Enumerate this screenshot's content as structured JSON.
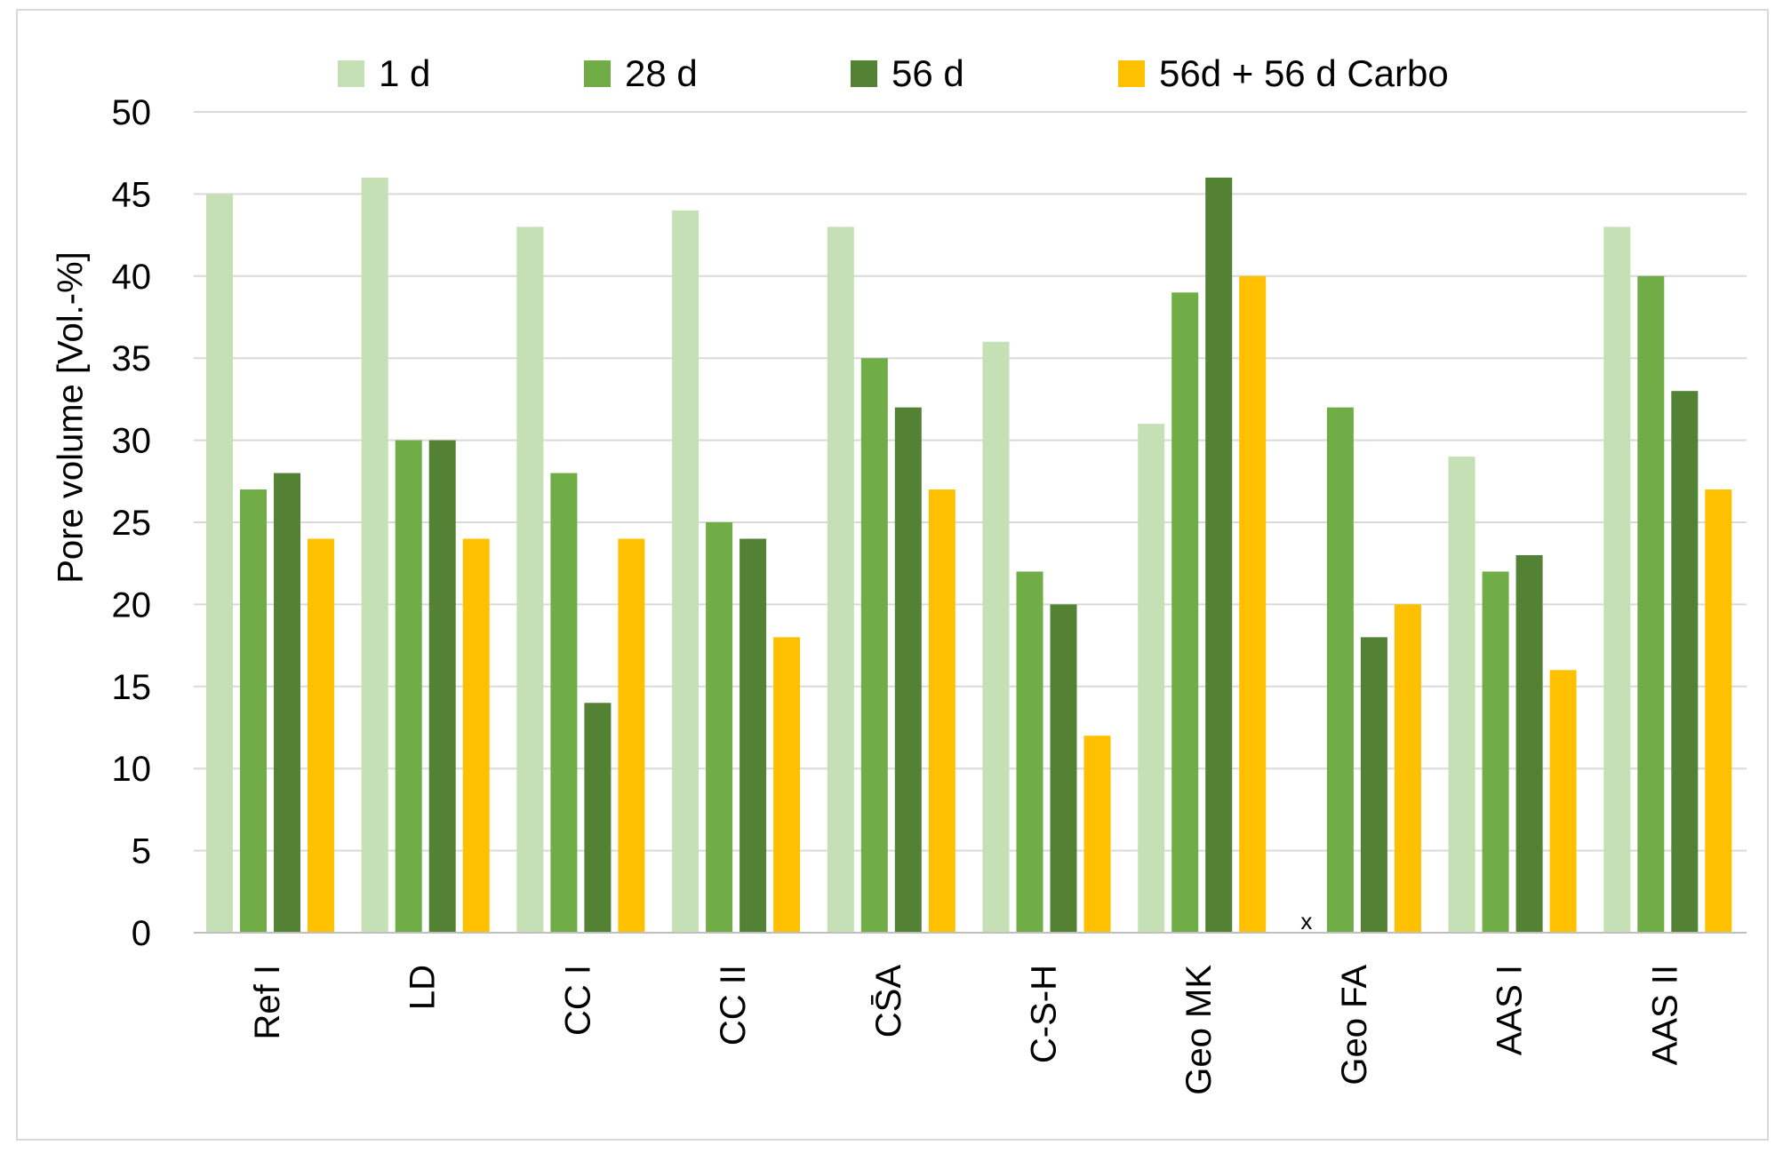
{
  "chart_data": {
    "type": "bar",
    "title": "",
    "xlabel": "",
    "ylabel": "Pore volume [Vol.-%]",
    "ylim": [
      0,
      50
    ],
    "yticks": [
      0,
      5,
      10,
      15,
      20,
      25,
      30,
      35,
      40,
      45,
      50
    ],
    "grid": true,
    "legend_position": "top",
    "categories": [
      "Ref I",
      "LD",
      "CC I",
      "CC II",
      "CS̄A",
      "C-S-H",
      "Geo MK",
      "Geo FA",
      "AAS I",
      "AAS II"
    ],
    "series": [
      {
        "name": "1 d",
        "color": "#c5e0b4",
        "values": [
          45,
          46,
          43,
          44,
          43,
          36,
          31,
          null,
          29,
          43
        ]
      },
      {
        "name": "28 d",
        "color": "#70ad47",
        "values": [
          27,
          30,
          28,
          25,
          35,
          22,
          39,
          32,
          22,
          40
        ]
      },
      {
        "name": "56 d",
        "color": "#548235",
        "values": [
          28,
          30,
          14,
          24,
          32,
          20,
          46,
          18,
          23,
          33
        ]
      },
      {
        "name": "56d + 56 d Carbo",
        "color": "#ffc000",
        "values": [
          24,
          24,
          24,
          18,
          27,
          12,
          40,
          20,
          16,
          27
        ]
      }
    ],
    "annotations": [
      {
        "text": "x",
        "category": "Geo FA",
        "series": "1 d",
        "meaning": "no value"
      }
    ]
  }
}
